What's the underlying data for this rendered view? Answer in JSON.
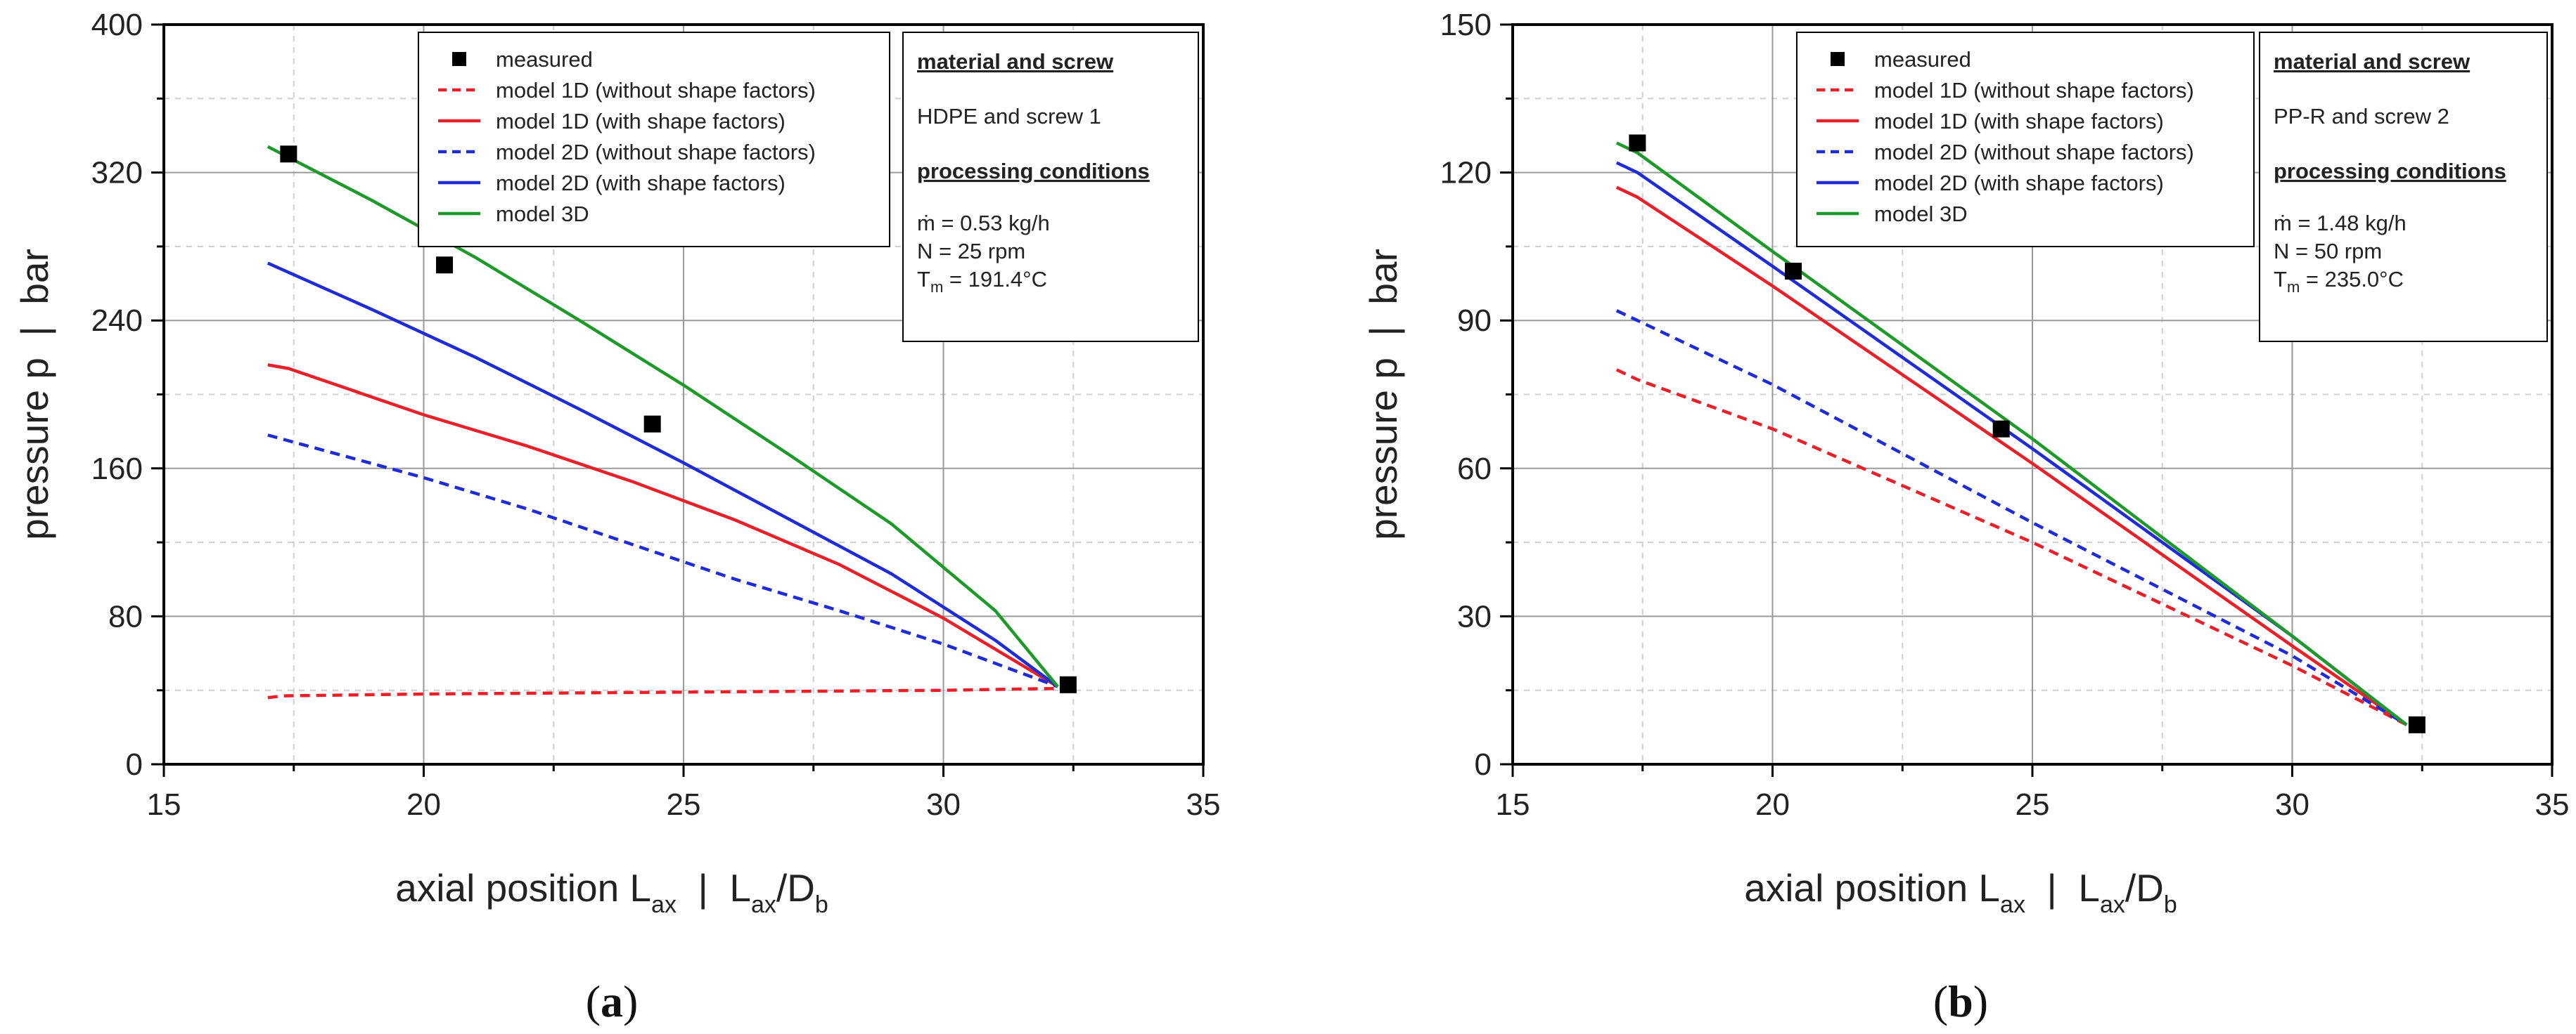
{
  "chart_data": [
    {
      "type": "line",
      "panel_label": "a",
      "xlabel": "axial position L",
      "xlabel_sub": "ax",
      "xlabel_sep": "|",
      "xlabel_unit_num": "L",
      "xlabel_unit_num_sub": "ax",
      "xlabel_unit_den": "/D",
      "xlabel_unit_den_sub": "b",
      "ylabel": "pressure p  |  bar",
      "xlim": [
        15,
        35
      ],
      "ylim": [
        0,
        400
      ],
      "xticks": [
        "15",
        "20",
        "25",
        "30",
        "35"
      ],
      "yticks": [
        "0",
        "80",
        "160",
        "240",
        "320",
        "400"
      ],
      "grid": true,
      "legend_position": "top-center",
      "series": [
        {
          "name": "measured",
          "style": "marker",
          "color": "#000000",
          "x": [
            17.4,
            20.4,
            24.4,
            32.4
          ],
          "y": [
            330,
            270,
            184,
            43
          ]
        },
        {
          "name": "model 1D (without shape factors)",
          "style": "dashed",
          "color": "#e8202a",
          "x": [
            17.0,
            17.3,
            20.0,
            25.0,
            30.0,
            32.2
          ],
          "y": [
            36,
            37,
            38,
            39,
            40,
            41
          ]
        },
        {
          "name": "model 1D (with shape factors)",
          "style": "solid",
          "color": "#e8202a",
          "x": [
            17.0,
            17.4,
            20.0,
            22.0,
            24.0,
            26.0,
            28.0,
            30.0,
            32.2
          ],
          "y": [
            216,
            214,
            189,
            172,
            153,
            132,
            108,
            79,
            42
          ]
        },
        {
          "name": "model 2D (without shape factors)",
          "style": "dashed",
          "color": "#1f2cd6",
          "x": [
            17.0,
            20.0,
            22.0,
            24.0,
            26.0,
            28.0,
            30.0,
            32.2
          ],
          "y": [
            178,
            155,
            138,
            119,
            100,
            83,
            65,
            42
          ]
        },
        {
          "name": "model 2D (with shape factors)",
          "style": "solid",
          "color": "#1f2cd6",
          "x": [
            17.0,
            19.0,
            21.0,
            23.0,
            25.0,
            27.0,
            29.0,
            31.0,
            32.2
          ],
          "y": [
            271,
            246,
            220,
            192,
            163,
            133,
            103,
            67,
            42
          ]
        },
        {
          "name": "model 3D",
          "style": "solid",
          "color": "#1e9a2a",
          "x": [
            17.0,
            19.0,
            21.0,
            23.0,
            25.0,
            27.0,
            29.0,
            31.0,
            32.2
          ],
          "y": [
            334,
            305,
            274,
            240,
            205,
            168,
            130,
            83,
            42
          ]
        }
      ],
      "info_box": {
        "heading1": "material and screw",
        "material": "HDPE and screw 1",
        "heading2": "processing conditions",
        "mass_flow": "ṁ = 0.53 kg/h",
        "speed": "N = 25 rpm",
        "temp_prefix": "T",
        "temp_sub": "m",
        "temp_value": " = 191.4°C"
      }
    },
    {
      "type": "line",
      "panel_label": "b",
      "xlabel": "axial position L",
      "xlabel_sub": "ax",
      "xlabel_sep": "|",
      "xlabel_unit_num": "L",
      "xlabel_unit_num_sub": "ax",
      "xlabel_unit_den": "/D",
      "xlabel_unit_den_sub": "b",
      "ylabel": "pressure p  |  bar",
      "xlim": [
        15,
        35
      ],
      "ylim": [
        0,
        150
      ],
      "xticks": [
        "15",
        "20",
        "25",
        "30",
        "35"
      ],
      "yticks": [
        "0",
        "30",
        "60",
        "90",
        "120",
        "150"
      ],
      "grid": true,
      "legend_position": "top-center",
      "series": [
        {
          "name": "measured",
          "style": "marker",
          "color": "#000000",
          "x": [
            17.4,
            20.4,
            24.4,
            32.4
          ],
          "y": [
            126,
            100,
            68,
            8
          ]
        },
        {
          "name": "model 1D (without shape factors)",
          "style": "dashed",
          "color": "#e8202a",
          "x": [
            17.0,
            17.4,
            20.0,
            25.0,
            30.0,
            32.2
          ],
          "y": [
            80,
            78,
            68,
            45,
            20,
            8
          ]
        },
        {
          "name": "model 1D (with shape factors)",
          "style": "solid",
          "color": "#e8202a",
          "x": [
            17.0,
            17.4,
            20.0,
            25.0,
            30.0,
            32.2
          ],
          "y": [
            117,
            115,
            97,
            61,
            24,
            8
          ]
        },
        {
          "name": "model 2D (without shape factors)",
          "style": "dashed",
          "color": "#1f2cd6",
          "x": [
            17.0,
            17.4,
            20.0,
            25.0,
            30.0,
            32.2
          ],
          "y": [
            92,
            90,
            77,
            49,
            22,
            8
          ]
        },
        {
          "name": "model 2D (with shape factors)",
          "style": "solid",
          "color": "#1f2cd6",
          "x": [
            17.0,
            17.4,
            20.0,
            25.0,
            30.0,
            32.2
          ],
          "y": [
            122,
            120,
            101,
            64,
            26,
            8
          ]
        },
        {
          "name": "model 3D",
          "style": "solid",
          "color": "#1e9a2a",
          "x": [
            17.0,
            17.4,
            20.0,
            25.0,
            30.0,
            32.2
          ],
          "y": [
            126,
            124,
            104,
            66,
            26,
            8
          ]
        }
      ],
      "info_box": {
        "heading1": "material and screw",
        "material": "PP-R and screw 2",
        "heading2": "processing conditions",
        "mass_flow": "ṁ = 1.48 kg/h",
        "speed": "N = 50 rpm",
        "temp_prefix": "T",
        "temp_sub": "m",
        "temp_value": " = 235.0°C"
      }
    }
  ]
}
